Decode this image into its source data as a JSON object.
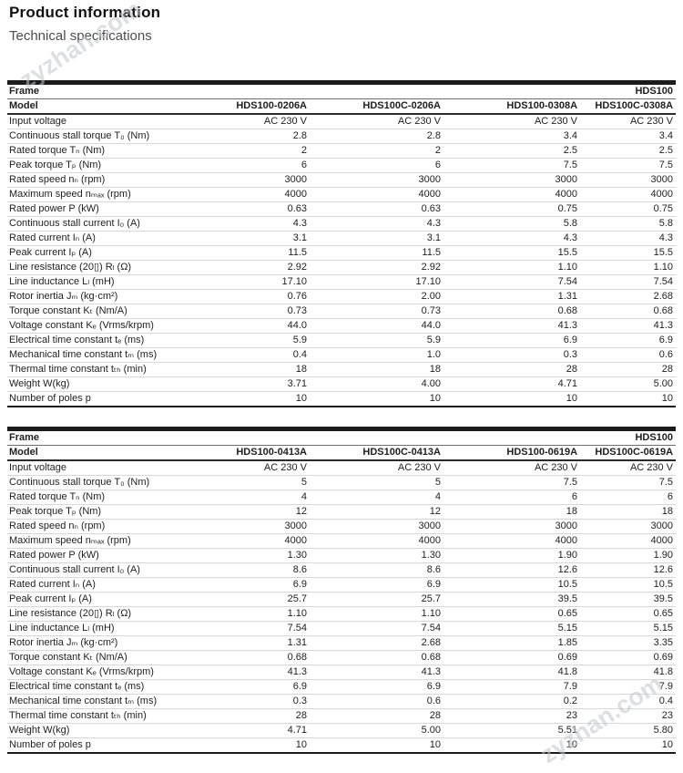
{
  "page": {
    "title": "Product information",
    "subtitle": "Technical specifications"
  },
  "watermark": {
    "text": "zyzhan.com"
  },
  "tables": [
    {
      "frame_label": "Frame",
      "frame_value": "HDS100",
      "model_label": "Model",
      "models": [
        "HDS100-0206A",
        "HDS100C-0206A",
        "HDS100-0308A",
        "HDS100C-0308A"
      ],
      "rows": [
        {
          "label": "Input voltage",
          "values": [
            "AC 230 V",
            "AC 230 V",
            "AC 230 V",
            "AC 230 V"
          ]
        },
        {
          "label": "Continuous stall torque T₀ (Nm)",
          "values": [
            "2.8",
            "2.8",
            "3.4",
            "3.4"
          ]
        },
        {
          "label": "Rated torque Tₙ (Nm)",
          "values": [
            "2",
            "2",
            "2.5",
            "2.5"
          ]
        },
        {
          "label": "Peak torque Tₚ (Nm)",
          "values": [
            "6",
            "6",
            "7.5",
            "7.5"
          ]
        },
        {
          "label": "Rated speed nₙ (rpm)",
          "values": [
            "3000",
            "3000",
            "3000",
            "3000"
          ]
        },
        {
          "label": "Maximum speed nₘₐₓ (rpm)",
          "values": [
            "4000",
            "4000",
            "4000",
            "4000"
          ]
        },
        {
          "label": "Rated power P (kW)",
          "values": [
            "0.63",
            "0.63",
            "0.75",
            "0.75"
          ]
        },
        {
          "label": "Continuous stall current I₀ (A)",
          "values": [
            "4.3",
            "4.3",
            "5.8",
            "5.8"
          ]
        },
        {
          "label": "Rated current Iₙ (A)",
          "values": [
            "3.1",
            "3.1",
            "4.3",
            "4.3"
          ]
        },
        {
          "label": "Peak current Iₚ (A)",
          "values": [
            "11.5",
            "11.5",
            "15.5",
            "15.5"
          ]
        },
        {
          "label": "Line resistance (20▯) Rₗ (Ω)",
          "values": [
            "2.92",
            "2.92",
            "1.10",
            "1.10"
          ]
        },
        {
          "label": "Line inductance Lₗ (mH)",
          "values": [
            "17.10",
            "17.10",
            "7.54",
            "7.54"
          ]
        },
        {
          "label": "Rotor inertia Jₘ (kg·cm²)",
          "values": [
            "0.76",
            "2.00",
            "1.31",
            "2.68"
          ]
        },
        {
          "label": "Torque constant Kₜ (Nm/A)",
          "values": [
            "0.73",
            "0.73",
            "0.68",
            "0.68"
          ]
        },
        {
          "label": "Voltage constant Kₑ (Vrms/krpm)",
          "values": [
            "44.0",
            "44.0",
            "41.3",
            "41.3"
          ]
        },
        {
          "label": "Electrical time constant tₑ (ms)",
          "values": [
            "5.9",
            "5.9",
            "6.9",
            "6.9"
          ]
        },
        {
          "label": "Mechanical time constant tₘ (ms)",
          "values": [
            "0.4",
            "1.0",
            "0.3",
            "0.6"
          ]
        },
        {
          "label": "Thermal time constant tₜₕ (min)",
          "values": [
            "18",
            "18",
            "28",
            "28"
          ]
        },
        {
          "label": "Weight W(kg)",
          "values": [
            "3.71",
            "4.00",
            "4.71",
            "5.00"
          ]
        },
        {
          "label": "Number of poles p",
          "values": [
            "10",
            "10",
            "10",
            "10"
          ]
        }
      ]
    },
    {
      "frame_label": "Frame",
      "frame_value": "HDS100",
      "model_label": "Model",
      "models": [
        "HDS100-0413A",
        "HDS100C-0413A",
        "HDS100-0619A",
        "HDS100C-0619A"
      ],
      "rows": [
        {
          "label": "Input voltage",
          "values": [
            "AC 230 V",
            "AC 230 V",
            "AC 230 V",
            "AC 230 V"
          ]
        },
        {
          "label": "Continuous stall torque T₀ (Nm)",
          "values": [
            "5",
            "5",
            "7.5",
            "7.5"
          ]
        },
        {
          "label": "Rated torque Tₙ (Nm)",
          "values": [
            "4",
            "4",
            "6",
            "6"
          ]
        },
        {
          "label": "Peak torque Tₚ (Nm)",
          "values": [
            "12",
            "12",
            "18",
            "18"
          ]
        },
        {
          "label": "Rated speed nₙ (rpm)",
          "values": [
            "3000",
            "3000",
            "3000",
            "3000"
          ]
        },
        {
          "label": "Maximum speed nₘₐₓ (rpm)",
          "values": [
            "4000",
            "4000",
            "4000",
            "4000"
          ]
        },
        {
          "label": "Rated power P (kW)",
          "values": [
            "1.30",
            "1.30",
            "1.90",
            "1.90"
          ]
        },
        {
          "label": "Continuous stall current I₀ (A)",
          "values": [
            "8.6",
            "8.6",
            "12.6",
            "12.6"
          ]
        },
        {
          "label": "Rated current Iₙ (A)",
          "values": [
            "6.9",
            "6.9",
            "10.5",
            "10.5"
          ]
        },
        {
          "label": "Peak current Iₚ (A)",
          "values": [
            "25.7",
            "25.7",
            "39.5",
            "39.5"
          ]
        },
        {
          "label": "Line resistance (20▯) Rₗ (Ω)",
          "values": [
            "1.10",
            "1.10",
            "0.65",
            "0.65"
          ]
        },
        {
          "label": "Line inductance Lₗ (mH)",
          "values": [
            "7.54",
            "7.54",
            "5.15",
            "5.15"
          ]
        },
        {
          "label": "Rotor inertia Jₘ (kg·cm²)",
          "values": [
            "1.31",
            "2.68",
            "1.85",
            "3.35"
          ]
        },
        {
          "label": "Torque constant Kₜ (Nm/A)",
          "values": [
            "0.68",
            "0.68",
            "0.69",
            "0.69"
          ]
        },
        {
          "label": "Voltage constant Kₑ (Vrms/krpm)",
          "values": [
            "41.3",
            "41.3",
            "41.8",
            "41.8"
          ]
        },
        {
          "label": "Electrical time constant tₑ (ms)",
          "values": [
            "6.9",
            "6.9",
            "7.9",
            "7.9"
          ]
        },
        {
          "label": "Mechanical time constant tₘ (ms)",
          "values": [
            "0.3",
            "0.6",
            "0.2",
            "0.4"
          ]
        },
        {
          "label": "Thermal time constant tₜₕ (min)",
          "values": [
            "28",
            "28",
            "23",
            "23"
          ]
        },
        {
          "label": "Weight W(kg)",
          "values": [
            "4.71",
            "5.00",
            "5.51",
            "5.80"
          ]
        },
        {
          "label": "Number of poles p",
          "values": [
            "10",
            "10",
            "10",
            "10"
          ]
        }
      ]
    }
  ]
}
